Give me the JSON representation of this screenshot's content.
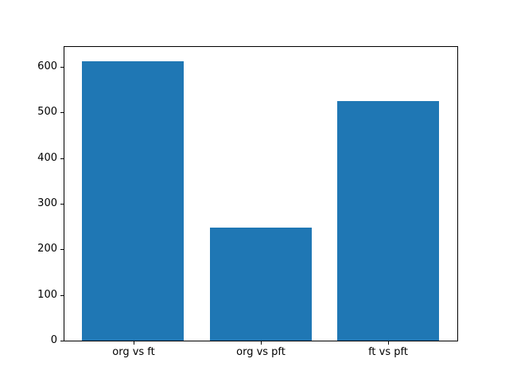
{
  "chart_data": {
    "type": "bar",
    "categories": [
      "org vs ft",
      "org vs pft",
      "ft vs pft"
    ],
    "values": [
      613,
      247,
      525
    ],
    "title": "",
    "xlabel": "",
    "ylabel": "",
    "yticks": [
      0,
      100,
      200,
      300,
      400,
      500,
      600
    ],
    "ylim": [
      0,
      643.65
    ],
    "xlim": [
      -0.54,
      2.54
    ],
    "bar_width": 0.8,
    "grid": false,
    "legend_position": "none",
    "colors": {
      "bar": "#1f77b4",
      "spine": "#000000",
      "background": "#ffffff",
      "tick_text": "#000000"
    }
  }
}
